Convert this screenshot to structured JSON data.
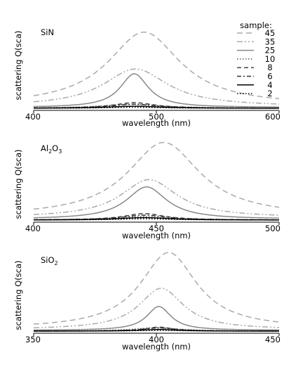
{
  "legend": {
    "title": "sample:",
    "entries": [
      {
        "label": "45",
        "color": "#aaaaaa",
        "dash": "8,5",
        "width": 1.5
      },
      {
        "label": "35",
        "color": "#aaaaaa",
        "dash": "8,3,2,3,2,3",
        "width": 1.5
      },
      {
        "label": "25",
        "color": "#888888",
        "dash": "",
        "width": 1.5
      },
      {
        "label": "10",
        "color": "#555555",
        "dash": "1.5,2.5",
        "width": 1.5
      },
      {
        "label": "8",
        "color": "#444444",
        "dash": "6,4",
        "width": 1.5
      },
      {
        "label": "6",
        "color": "#333333",
        "dash": "6,3,2,3",
        "width": 1.5
      },
      {
        "label": "4",
        "color": "#000000",
        "dash": "",
        "width": 1.5
      },
      {
        "label": "2",
        "color": "#000000",
        "dash": "1.5,2.5",
        "width": 1.5
      }
    ]
  },
  "chart_data": [
    {
      "type": "line",
      "panel_label_main": "SiN",
      "panel_label_sub": "",
      "xlabel": "wavelength (nm)",
      "ylabel": "scattering Q(sca)",
      "xlim": [
        400,
        600
      ],
      "xticks": [
        400,
        500,
        600
      ],
      "xtick_labels": [
        "400",
        "500",
        "600"
      ],
      "ylim": [
        0,
        1.0
      ],
      "grid": false,
      "legend_position": "top-right",
      "series": [
        {
          "name": "45",
          "peak_x": 490,
          "peak_y": 0.92,
          "width": 36,
          "base": 0.03
        },
        {
          "name": "35",
          "peak_x": 483,
          "peak_y": 0.47,
          "width": 32,
          "base": 0.02
        },
        {
          "name": "25",
          "peak_x": 482,
          "peak_y": 0.42,
          "width": 14,
          "base": 0.01
        },
        {
          "name": "10",
          "peak_x": 480,
          "peak_y": 0.05,
          "width": 30,
          "base": 0.0
        },
        {
          "name": "8",
          "peak_x": 482,
          "peak_y": 0.07,
          "width": 20,
          "base": 0.0
        },
        {
          "name": "6",
          "peak_x": 482,
          "peak_y": 0.05,
          "width": 22,
          "base": 0.0
        },
        {
          "name": "4",
          "peak_x": 482,
          "peak_y": 0.025,
          "width": 25,
          "base": 0.0
        },
        {
          "name": "2",
          "peak_x": 482,
          "peak_y": 0.012,
          "width": 30,
          "base": 0.0
        }
      ]
    },
    {
      "type": "line",
      "panel_label_main": "Al",
      "panel_label_sub": "2",
      "panel_label_main2": "O",
      "panel_label_sub2": "3",
      "xlabel": "wavelength (nm)",
      "ylabel": "scattering Q(sca)",
      "xlim": [
        400,
        500
      ],
      "xticks": [
        400,
        450,
        500
      ],
      "xtick_labels": [
        "400",
        "450",
        "500"
      ],
      "ylim": [
        0,
        1.0
      ],
      "grid": false,
      "legend_position": "",
      "series": [
        {
          "name": "45",
          "peak_x": 453,
          "peak_y": 0.92,
          "width": 18,
          "base": 0.04
        },
        {
          "name": "35",
          "peak_x": 447,
          "peak_y": 0.47,
          "width": 14,
          "base": 0.03
        },
        {
          "name": "25",
          "peak_x": 446,
          "peak_y": 0.4,
          "width": 10,
          "base": 0.01
        },
        {
          "name": "10",
          "peak_x": 444,
          "peak_y": 0.04,
          "width": 14,
          "base": 0.0
        },
        {
          "name": "8",
          "peak_x": 445,
          "peak_y": 0.08,
          "width": 10,
          "base": 0.0
        },
        {
          "name": "6",
          "peak_x": 445,
          "peak_y": 0.06,
          "width": 11,
          "base": 0.0
        },
        {
          "name": "4",
          "peak_x": 445,
          "peak_y": 0.03,
          "width": 12,
          "base": 0.0
        },
        {
          "name": "2",
          "peak_x": 445,
          "peak_y": 0.015,
          "width": 14,
          "base": 0.0
        }
      ]
    },
    {
      "type": "line",
      "panel_label_main": "SiO",
      "panel_label_sub": "2",
      "xlabel": "wavelength (nm)",
      "ylabel": "scattering Q(sca)",
      "xlim": [
        350,
        450
      ],
      "xticks": [
        350,
        400,
        450
      ],
      "xtick_labels": [
        "350",
        "400",
        "450"
      ],
      "ylim": [
        0,
        1.0
      ],
      "grid": false,
      "legend_position": "",
      "series": [
        {
          "name": "45",
          "peak_x": 405,
          "peak_y": 0.96,
          "width": 14,
          "base": 0.03
        },
        {
          "name": "35",
          "peak_x": 402,
          "peak_y": 0.52,
          "width": 11,
          "base": 0.02
        },
        {
          "name": "25",
          "peak_x": 401,
          "peak_y": 0.3,
          "width": 6,
          "base": 0.01
        },
        {
          "name": "10",
          "peak_x": 400,
          "peak_y": 0.04,
          "width": 12,
          "base": 0.0
        },
        {
          "name": "8",
          "peak_x": 401,
          "peak_y": 0.05,
          "width": 7,
          "base": 0.0
        },
        {
          "name": "6",
          "peak_x": 401,
          "peak_y": 0.04,
          "width": 8,
          "base": 0.0
        },
        {
          "name": "4",
          "peak_x": 401,
          "peak_y": 0.02,
          "width": 9,
          "base": 0.0
        },
        {
          "name": "2",
          "peak_x": 401,
          "peak_y": 0.01,
          "width": 11,
          "base": 0.0
        }
      ]
    }
  ]
}
